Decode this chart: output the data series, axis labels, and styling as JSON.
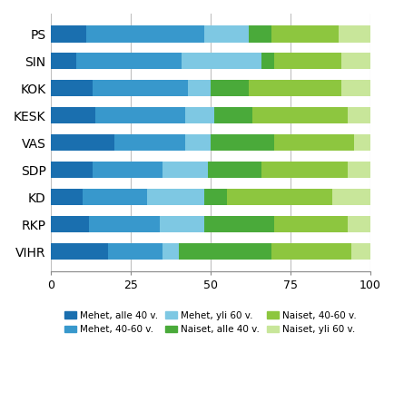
{
  "parties": [
    "PS",
    "SIN",
    "KOK",
    "KESK",
    "VAS",
    "SDP",
    "KD",
    "RKP",
    "VIHR"
  ],
  "segment_keys": [
    "Mehet, alle 40 v.",
    "Mehet, 40-60 v.",
    "Mehet, yli 60 v.",
    "Naiset, alle 40 v.",
    "Naiset, 40-60 v.",
    "Naiset, yli 60 v."
  ],
  "segments": {
    "Mehet, alle 40 v.": [
      11,
      8,
      13,
      14,
      20,
      13,
      10,
      12,
      18
    ],
    "Mehet, 40-60 v.": [
      37,
      33,
      30,
      28,
      22,
      22,
      20,
      22,
      17
    ],
    "Mehet, yli 60 v.": [
      14,
      25,
      7,
      9,
      8,
      14,
      18,
      14,
      5
    ],
    "Naiset, alle 40 v.": [
      7,
      4,
      12,
      12,
      20,
      17,
      7,
      22,
      29
    ],
    "Naiset, 40-60 v.": [
      21,
      21,
      29,
      30,
      25,
      27,
      33,
      23,
      25
    ],
    "Naiset, yli 60 v.": [
      10,
      9,
      9,
      7,
      5,
      7,
      12,
      7,
      6
    ]
  },
  "colors": {
    "Mehet, alle 40 v.": "#1a6faf",
    "Mehet, 40-60 v.": "#3898cc",
    "Mehet, yli 60 v.": "#7ec8e3",
    "Naiset, alle 40 v.": "#4aaa3a",
    "Naiset, 40-60 v.": "#8dc63f",
    "Naiset, yli 60 v.": "#c8e69a"
  },
  "xlim": [
    0,
    100
  ],
  "xticks": [
    0,
    25,
    50,
    75,
    100
  ],
  "background_color": "#ffffff",
  "grid_color": "#c0c0c0",
  "bar_height": 0.62,
  "bar_gap": 0.38
}
